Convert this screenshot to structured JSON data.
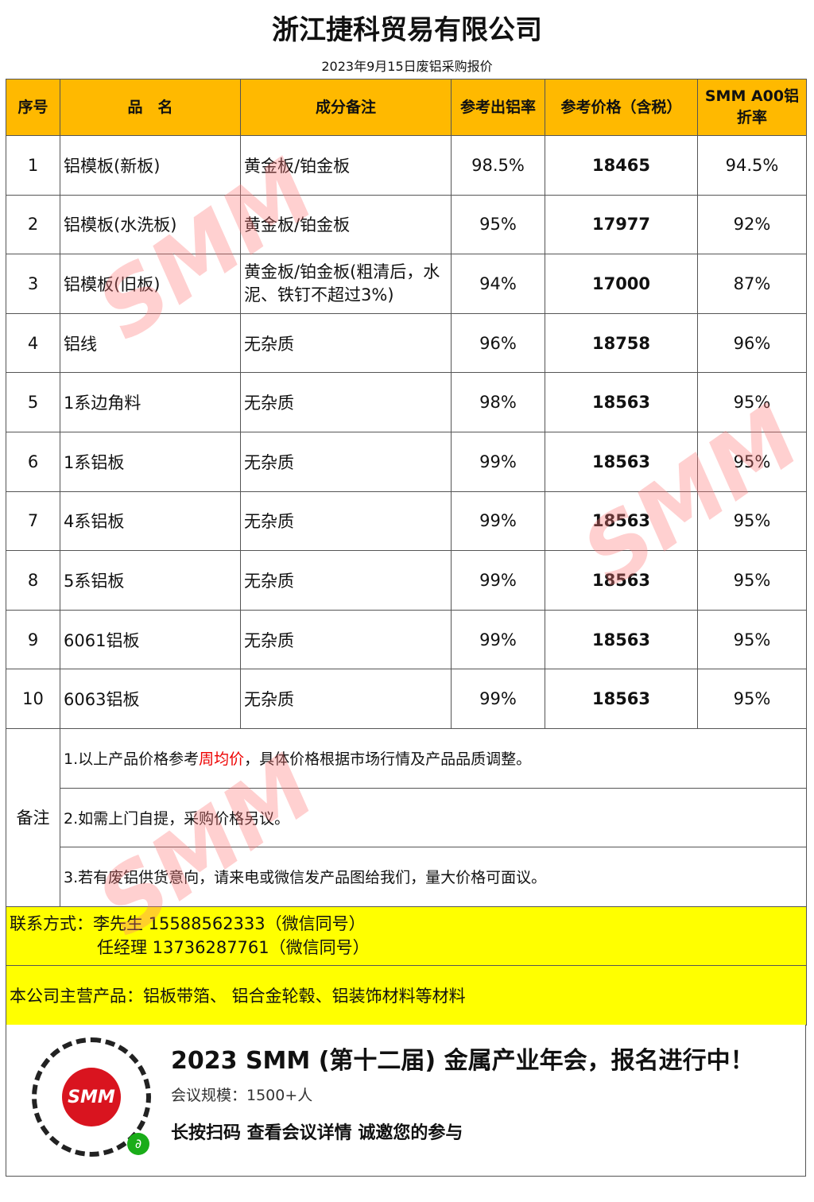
{
  "title": "浙江捷科贸易有限公司",
  "subtitle": "2023年9月15日废铝采购报价",
  "headers": [
    "序号",
    "品　名",
    "成分备注",
    "参考出铝率",
    "参考价格（含税）",
    "SMM A00铝折率"
  ],
  "rows": [
    {
      "no": "1",
      "name": "铝模板(新板)",
      "note": "黄金板/铂金板",
      "yield": "98.5%",
      "price": "18465",
      "rate": "94.5%"
    },
    {
      "no": "2",
      "name": "铝模板(水洗板)",
      "note": "黄金板/铂金板",
      "yield": "95%",
      "price": "17977",
      "rate": "92%"
    },
    {
      "no": "3",
      "name": "铝模板(旧板)",
      "note": "黄金板/铂金板(粗清后，水泥、铁钉不超过3%)",
      "yield": "94%",
      "price": "17000",
      "rate": "87%"
    },
    {
      "no": "4",
      "name": "铝线",
      "note": "无杂质",
      "yield": "96%",
      "price": "18758",
      "rate": "96%"
    },
    {
      "no": "5",
      "name": "1系边角料",
      "note": "无杂质",
      "yield": "98%",
      "price": "18563",
      "rate": "95%"
    },
    {
      "no": "6",
      "name": "1系铝板",
      "note": "无杂质",
      "yield": "99%",
      "price": "18563",
      "rate": "95%"
    },
    {
      "no": "7",
      "name": "4系铝板",
      "note": "无杂质",
      "yield": "99%",
      "price": "18563",
      "rate": "95%"
    },
    {
      "no": "8",
      "name": "5系铝板",
      "note": "无杂质",
      "yield": "99%",
      "price": "18563",
      "rate": "95%"
    },
    {
      "no": "9",
      "name": "6061铝板",
      "note": "无杂质",
      "yield": "99%",
      "price": "18563",
      "rate": "95%"
    },
    {
      "no": "10",
      "name": "6063铝板",
      "note": "无杂质",
      "yield": "99%",
      "price": "18563",
      "rate": "95%"
    }
  ],
  "remarks": {
    "label": "备注",
    "line1_a": "1.以上产品价格参考",
    "line1_red": "周均价",
    "line1_b": "，具体价格根据市场行情及产品品质调整。",
    "line2": "2.如需上门自提，采购价格另议。",
    "line3": "3.若有废铝供货意向，请来电或微信发产品图给我们，量大价格可面议。"
  },
  "contact": {
    "label": "联系方式：",
    "line1": "李先生 15588562333（微信同号）",
    "line2": "任经理 13736287761（微信同号）"
  },
  "products": "本公司主营产品：铝板带箔、 铝合金轮毂、铝装饰材料等材料",
  "banner": {
    "headline": "2023 SMM (第十二届) 金属产业年会，报名进行中！",
    "scale": "会议规模：1500+人",
    "cta": "长按扫码  查看会议详情   诚邀您的参与",
    "logo": "SMM"
  },
  "watermark": "SMM",
  "colors": {
    "header": "#ffb900",
    "highlight": "#ffff00",
    "red": "#e00000"
  }
}
